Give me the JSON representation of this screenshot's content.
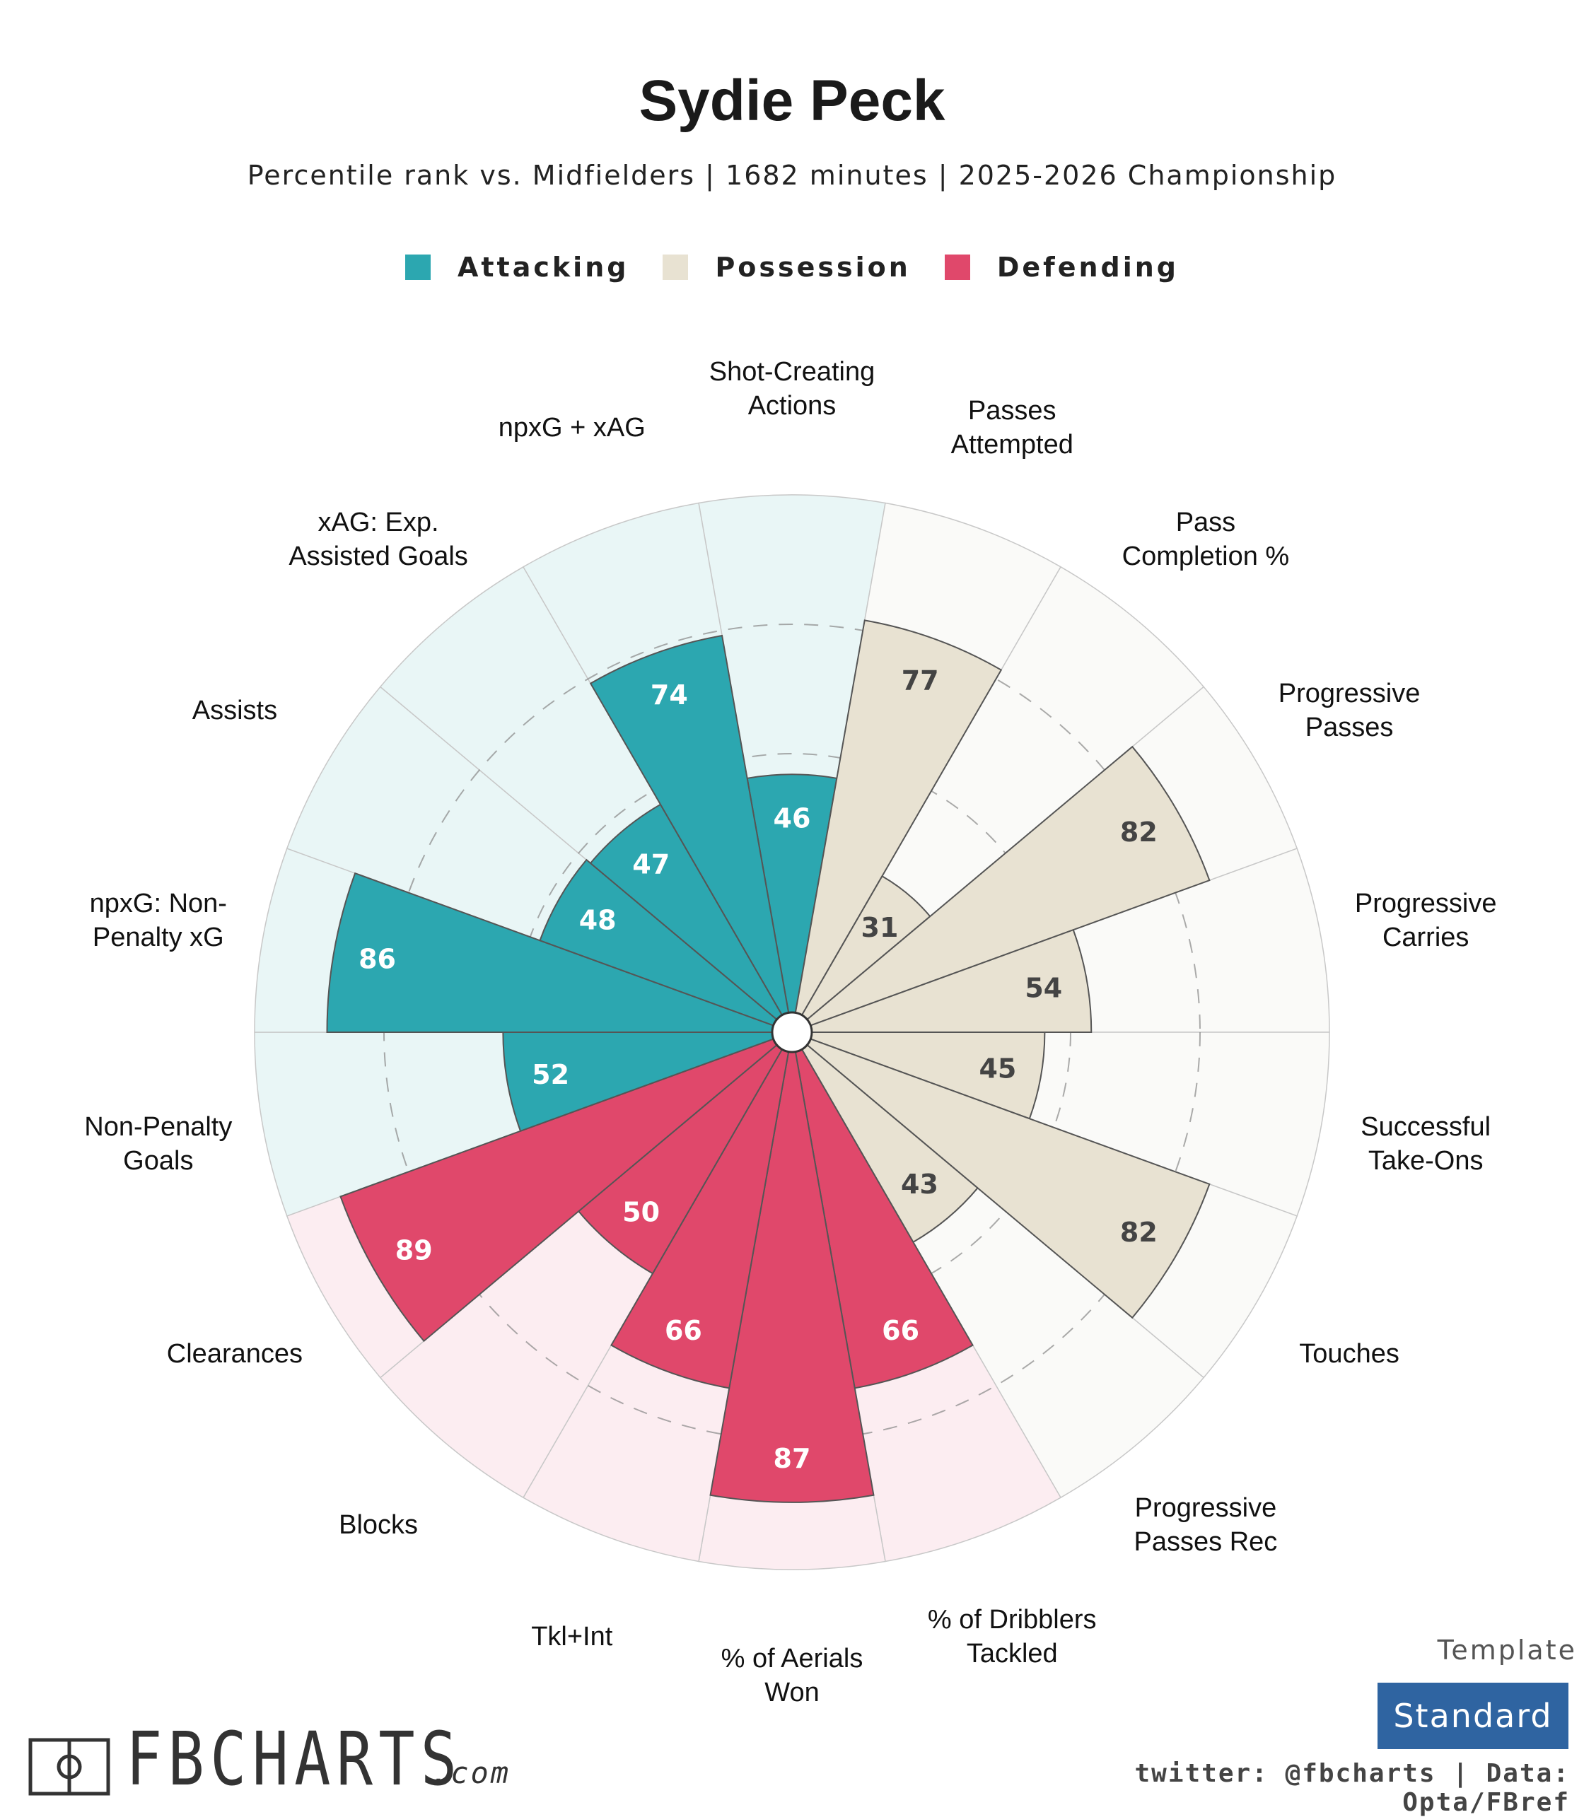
{
  "title": "Sydie Peck",
  "subtitle": "Percentile rank vs. Midfielders | 1682 minutes | 2025-2026 Championship",
  "legend": [
    {
      "label": "Attacking",
      "color": "#2ca7b0"
    },
    {
      "label": "Possession",
      "color": "#e8e2d2"
    },
    {
      "label": "Defending",
      "color": "#e0486b"
    }
  ],
  "template": {
    "label": "Template",
    "value": "Standard"
  },
  "credits": "twitter: @fbcharts | Data: Opta/FBref",
  "brand": {
    "name": "FBCHARTS",
    "suffix": ".com"
  },
  "chart_data": {
    "type": "polar_bar",
    "title": "Sydie Peck",
    "range": [
      0,
      100
    ],
    "gridlines": [
      25,
      50,
      75
    ],
    "categories": [
      {
        "label": [
          "Shot-Creating",
          "Actions"
        ],
        "value": 46,
        "group": "Attacking"
      },
      {
        "label": [
          "Passes",
          "Attempted"
        ],
        "value": 77,
        "group": "Possession"
      },
      {
        "label": [
          "Pass",
          "Completion %"
        ],
        "value": 31,
        "group": "Possession"
      },
      {
        "label": [
          "Progressive",
          "Passes"
        ],
        "value": 82,
        "group": "Possession"
      },
      {
        "label": [
          "Progressive",
          "Carries"
        ],
        "value": 54,
        "group": "Possession"
      },
      {
        "label": [
          "Successful",
          "Take-Ons"
        ],
        "value": 45,
        "group": "Possession"
      },
      {
        "label": [
          "Touches"
        ],
        "value": 82,
        "group": "Possession"
      },
      {
        "label": [
          "Progressive",
          "Passes Rec"
        ],
        "value": 43,
        "group": "Possession"
      },
      {
        "label": [
          "% of Dribblers",
          "Tackled"
        ],
        "value": 66,
        "group": "Defending"
      },
      {
        "label": [
          "% of Aerials",
          "Won"
        ],
        "value": 87,
        "group": "Defending"
      },
      {
        "label": [
          "Tkl+Int"
        ],
        "value": 66,
        "group": "Defending"
      },
      {
        "label": [
          "Blocks"
        ],
        "value": 50,
        "group": "Defending"
      },
      {
        "label": [
          "Clearances"
        ],
        "value": 89,
        "group": "Defending"
      },
      {
        "label": [
          "Non-Penalty",
          "Goals"
        ],
        "value": 52,
        "group": "Attacking"
      },
      {
        "label": [
          "npxG: Non-",
          "Penalty xG"
        ],
        "value": 86,
        "group": "Attacking"
      },
      {
        "label": [
          "Assists"
        ],
        "value": 48,
        "group": "Attacking"
      },
      {
        "label": [
          "xAG: Exp.",
          "Assisted Goals"
        ],
        "value": 47,
        "group": "Attacking"
      },
      {
        "label": [
          "npxG + xAG"
        ],
        "value": 74,
        "group": "Attacking"
      }
    ],
    "colors": {
      "Attacking": {
        "bar": "#2ca7b0",
        "bg": "#e9f6f6",
        "text": "#ffffff"
      },
      "Possession": {
        "bar": "#e8e2d2",
        "bg": "#fafaf8",
        "text": "#444444"
      },
      "Defending": {
        "bar": "#e0486b",
        "bg": "#fcedf1",
        "text": "#ffffff"
      }
    }
  }
}
